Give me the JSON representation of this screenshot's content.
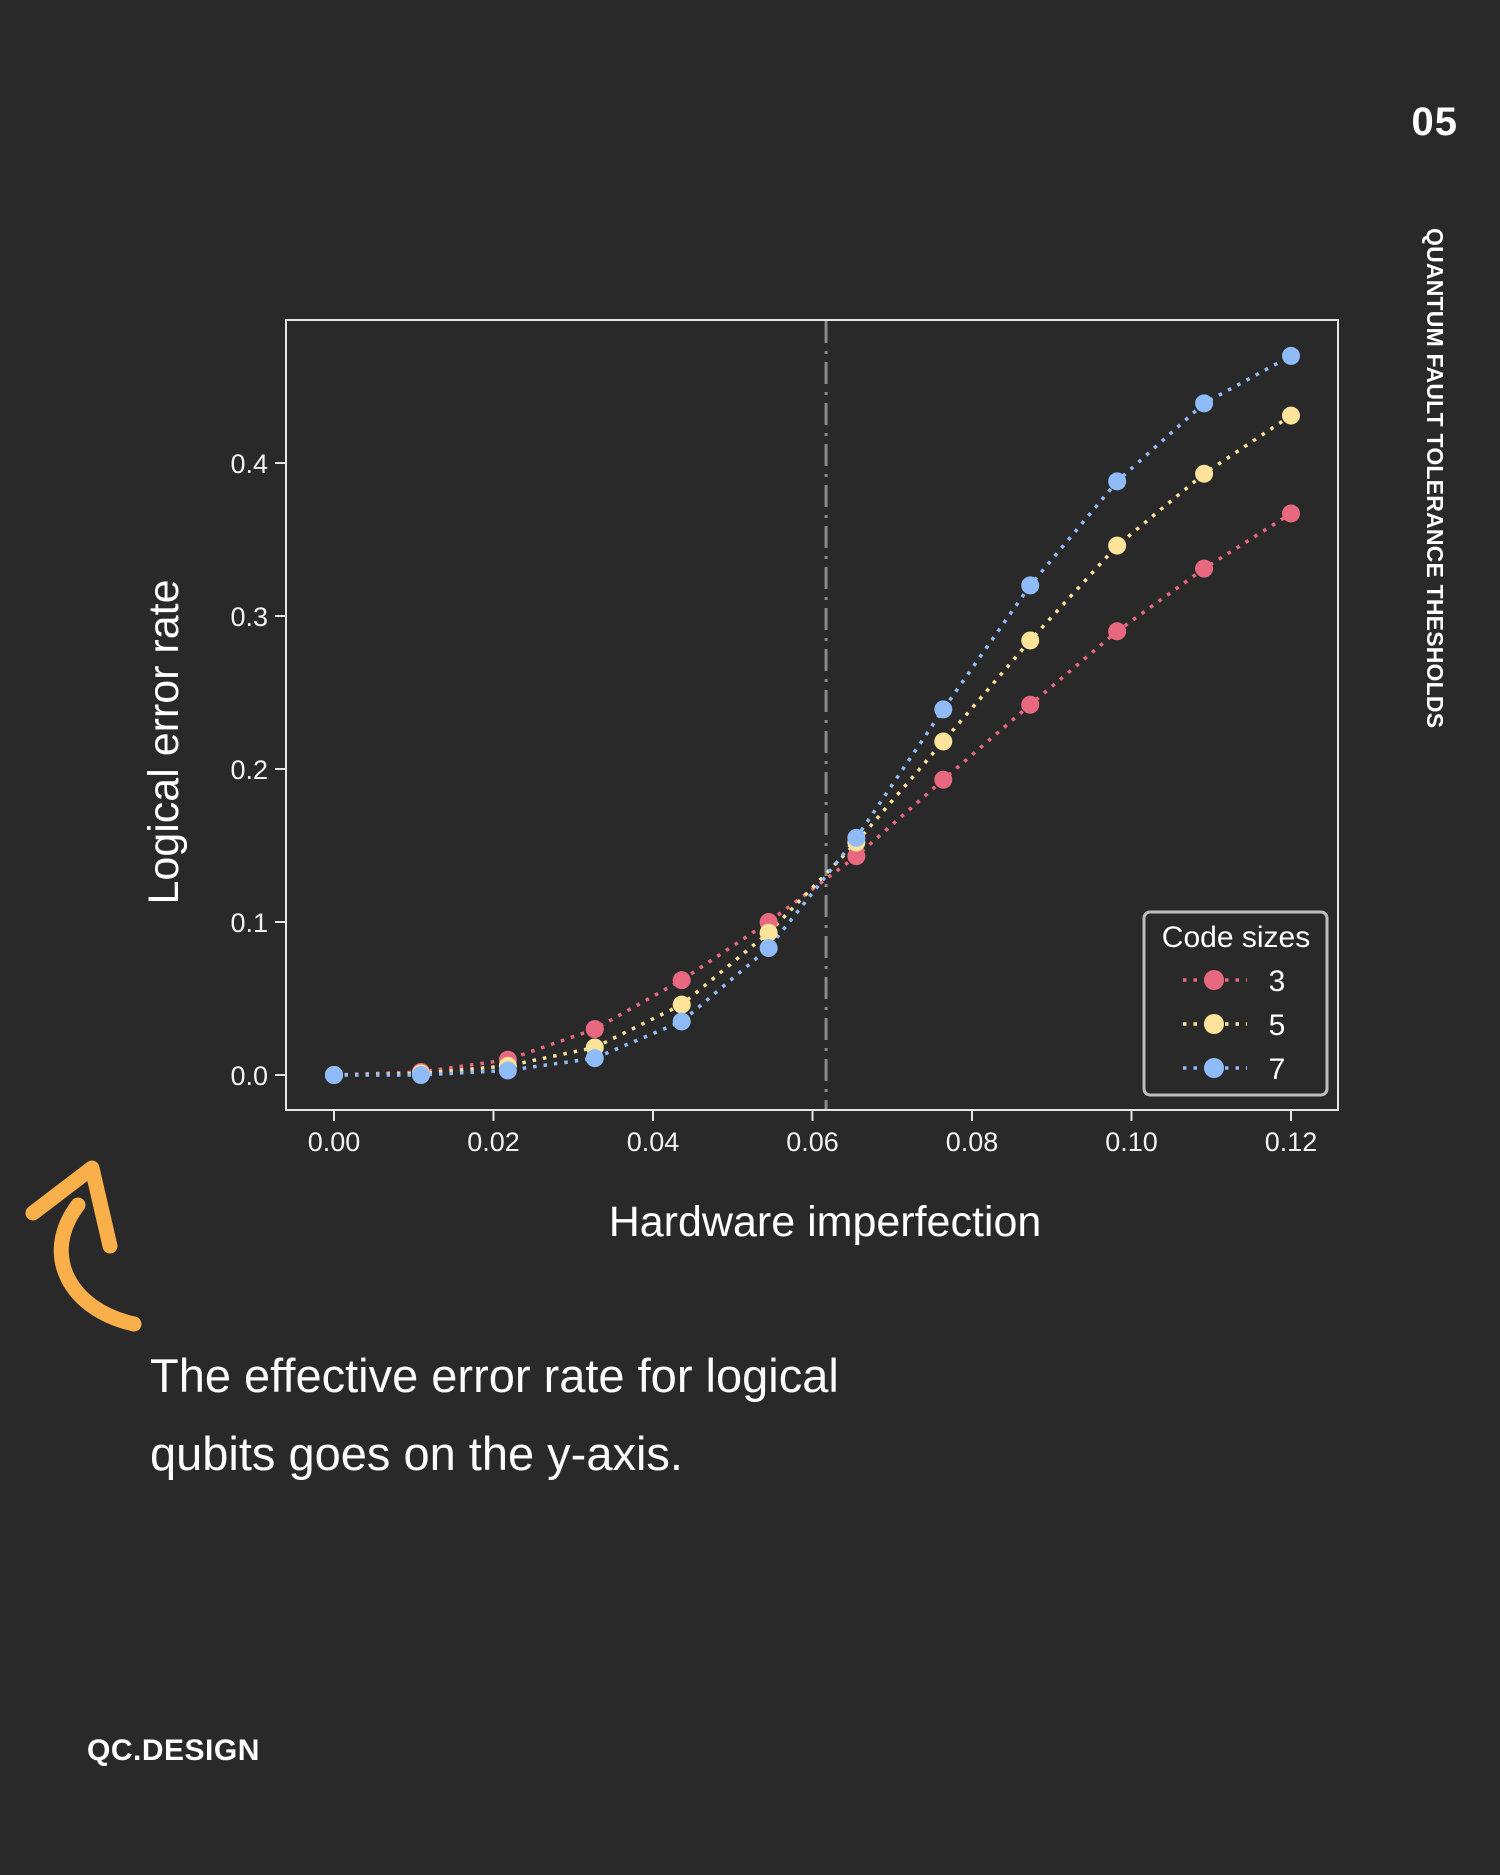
{
  "page": {
    "number": "05",
    "side_title": "QUANTUM FAULT TOLERANCE THESHOLDS",
    "caption_line1": "The effective error rate for logical",
    "caption_line2": "qubits goes on the y-axis.",
    "brand": "QC.DESIGN",
    "background": "#292929",
    "accent_arrow_color": "#F9B04A"
  },
  "chart_data": {
    "type": "line",
    "title": "",
    "xlabel": "Hardware imperfection",
    "ylabel": "Logical error rate",
    "xlim": [
      -0.006,
      0.126
    ],
    "ylim": [
      -0.023,
      0.495
    ],
    "xticks": [
      0.0,
      0.02,
      0.04,
      0.06,
      0.08,
      0.1,
      0.12
    ],
    "xtick_labels": [
      "0.00",
      "0.02",
      "0.04",
      "0.06",
      "0.08",
      "0.10",
      "0.12"
    ],
    "yticks": [
      0.0,
      0.1,
      0.2,
      0.3,
      0.4
    ],
    "ytick_labels": [
      "0.0",
      "0.1",
      "0.2",
      "0.3",
      "0.4"
    ],
    "grid": false,
    "threshold_line": {
      "x": 0.0617,
      "style": "dash-dot",
      "color": "#8a8a8a"
    },
    "legend": {
      "title": "Code sizes",
      "position": "lower right"
    },
    "x": [
      0.0,
      0.0109,
      0.0218,
      0.0327,
      0.0436,
      0.0545,
      0.0655,
      0.0764,
      0.0873,
      0.0982,
      0.1091,
      0.12
    ],
    "series": [
      {
        "name": "3",
        "color": "#E8697F",
        "values": [
          0.0,
          0.002,
          0.01,
          0.03,
          0.062,
          0.1,
          0.143,
          0.193,
          0.242,
          0.29,
          0.331,
          0.367
        ]
      },
      {
        "name": "5",
        "color": "#FDE49A",
        "values": [
          0.0,
          0.001,
          0.006,
          0.018,
          0.046,
          0.093,
          0.152,
          0.218,
          0.284,
          0.346,
          0.393,
          0.431
        ]
      },
      {
        "name": "7",
        "color": "#8FBCF9",
        "values": [
          0.0,
          0.0,
          0.003,
          0.011,
          0.035,
          0.083,
          0.155,
          0.239,
          0.32,
          0.388,
          0.439,
          0.47
        ]
      }
    ]
  }
}
